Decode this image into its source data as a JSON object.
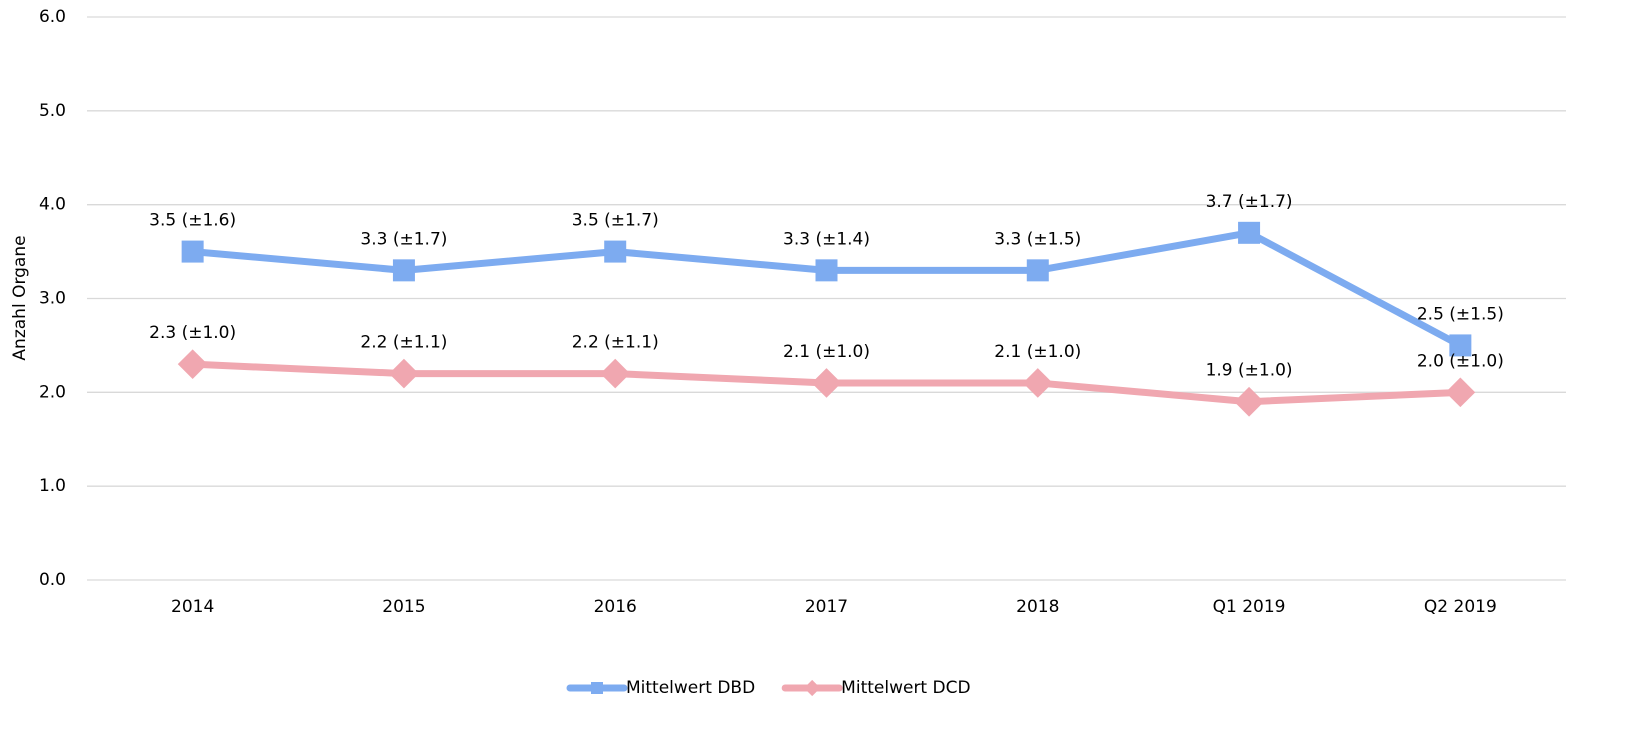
{
  "chart_data": {
    "type": "line",
    "y_label": "Anzahl Organe",
    "categories": [
      "2014",
      "2015",
      "2016",
      "2017",
      "2018",
      "Q1 2019",
      "Q2 2019"
    ],
    "series": [
      {
        "name": "Mittelwert DBD",
        "color": "#7dabf0",
        "marker": "square",
        "values": [
          3.5,
          3.3,
          3.5,
          3.3,
          3.3,
          3.7,
          2.5
        ],
        "value_labels": [
          "3.5 (±1.6)",
          "3.3 (±1.7)",
          "3.5 (±1.7)",
          "3.3 (±1.4)",
          "3.3 (±1.5)",
          "3.7 (±1.7)",
          "2.5 (±1.5)"
        ]
      },
      {
        "name": "Mittelwert DCD",
        "color": "#f0a7b0",
        "marker": "diamond",
        "values": [
          2.3,
          2.2,
          2.2,
          2.1,
          2.1,
          1.9,
          2.0
        ],
        "value_labels": [
          "2.3 (±1.0)",
          "2.2 (±1.1)",
          "2.2 (±1.1)",
          "2.1 (±1.0)",
          "2.1 (±1.0)",
          "1.9 (±1.0)",
          "2.0 (±1.0)"
        ]
      }
    ],
    "ylim": [
      0,
      6
    ],
    "yticks": [
      {
        "value": 0,
        "label": "0.0"
      },
      {
        "value": 1,
        "label": "1.0"
      },
      {
        "value": 2,
        "label": "2.0"
      },
      {
        "value": 3,
        "label": "3.0"
      },
      {
        "value": 4,
        "label": "4.0"
      },
      {
        "value": 5,
        "label": "5.0"
      },
      {
        "value": 6,
        "label": "6.0"
      }
    ],
    "grid": true,
    "legend": "bottom"
  }
}
